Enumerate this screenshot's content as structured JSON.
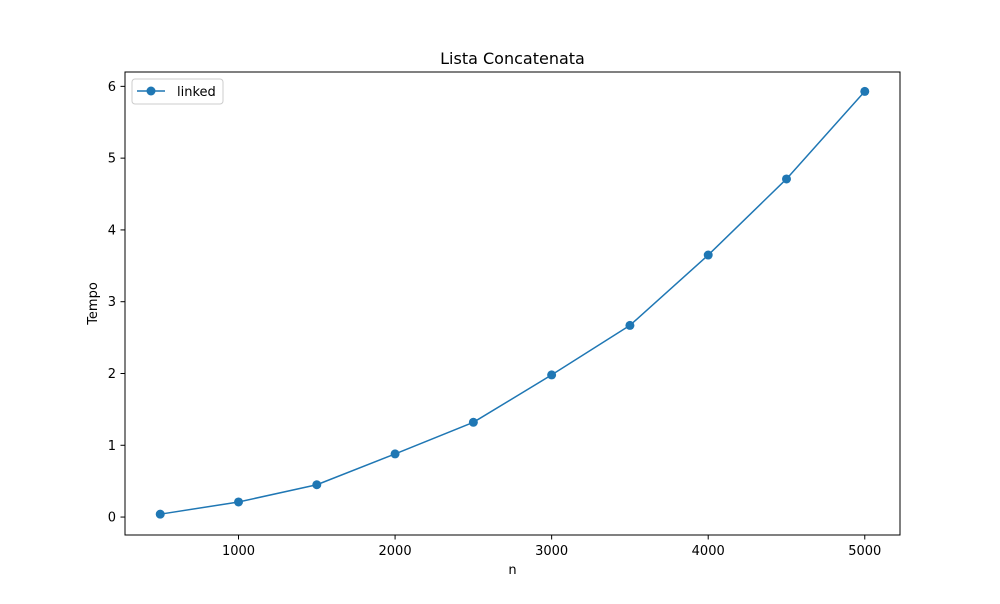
{
  "chart_data": {
    "type": "line",
    "title": "Lista Concatenata",
    "xlabel": "n",
    "ylabel": "Tempo",
    "xlim": [
      275,
      5225
    ],
    "ylim": [
      -0.25,
      6.2
    ],
    "xticks": [
      1000,
      2000,
      3000,
      4000,
      5000
    ],
    "yticks": [
      0,
      1,
      2,
      3,
      4,
      5,
      6
    ],
    "grid": false,
    "legend_position": "top-left",
    "series": [
      {
        "name": "linked",
        "color": "#1f77b4",
        "marker": "circle",
        "x": [
          500,
          1000,
          1500,
          2000,
          2500,
          3000,
          3500,
          4000,
          4500,
          5000
        ],
        "y": [
          0.04,
          0.21,
          0.45,
          0.88,
          1.32,
          1.98,
          2.67,
          3.65,
          4.71,
          5.93
        ]
      }
    ]
  }
}
